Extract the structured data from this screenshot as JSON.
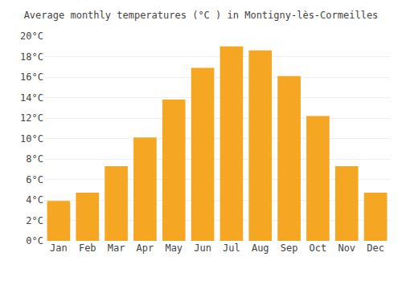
{
  "chart_data": {
    "type": "bar",
    "title": "Average monthly temperatures (°C ) in Montigny-lès-Cormeilles",
    "categories": [
      "Jan",
      "Feb",
      "Mar",
      "Apr",
      "May",
      "Jun",
      "Jul",
      "Aug",
      "Sep",
      "Oct",
      "Nov",
      "Dec"
    ],
    "values": [
      3.9,
      4.7,
      7.3,
      10.1,
      13.8,
      16.9,
      19.0,
      18.6,
      16.1,
      12.2,
      7.3,
      4.7
    ],
    "color": "#F5A623",
    "ylim": [
      0,
      20
    ],
    "yticks": [
      {
        "value": 0,
        "label": "0°C"
      },
      {
        "value": 2,
        "label": "2°C"
      },
      {
        "value": 4,
        "label": "4°C"
      },
      {
        "value": 6,
        "label": "6°C"
      },
      {
        "value": 8,
        "label": "8°C"
      },
      {
        "value": 10,
        "label": "10°C"
      },
      {
        "value": 12,
        "label": "12°C"
      },
      {
        "value": 14,
        "label": "14°C"
      },
      {
        "value": 16,
        "label": "16°C"
      },
      {
        "value": 18,
        "label": "18°C"
      },
      {
        "value": 20,
        "label": "20°C"
      }
    ],
    "grid": true
  }
}
